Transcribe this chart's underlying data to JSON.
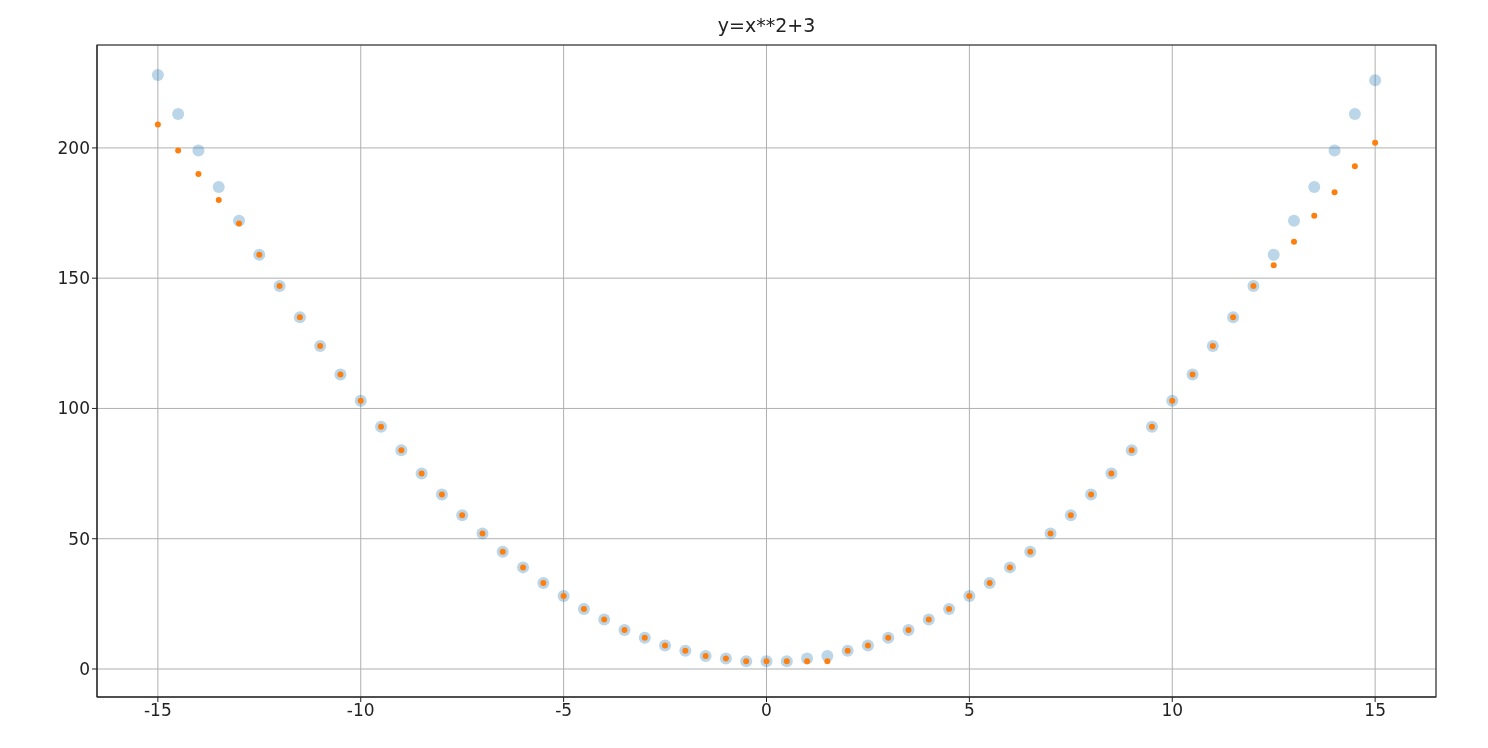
{
  "chart_data": {
    "type": "scatter",
    "title": "y=x**2+3",
    "series": [
      {
        "color": "#1f77b4",
        "x": [
          -15,
          -14.5,
          -14,
          -13.5,
          -13,
          -12.5,
          -12,
          -11.5,
          -11,
          -10.5,
          -10,
          -9.5,
          -9,
          -8.5,
          -8,
          -7.5,
          -7,
          -6.5,
          -6,
          -5.5,
          -5,
          -4.5,
          -4,
          -3.5,
          -3,
          -2.5,
          -2,
          -1.5,
          -1,
          -0.5,
          0,
          0.5,
          1,
          1.5,
          2,
          2.5,
          3,
          3.5,
          4,
          4.5,
          5,
          5.5,
          6,
          6.5,
          7,
          7.5,
          8,
          8.5,
          9,
          9.5,
          10,
          10.5,
          11,
          11.5,
          12,
          12.5,
          13,
          13.5,
          14,
          14.5,
          15
        ],
        "values": [
          228,
          213,
          199,
          185,
          172,
          159,
          147,
          135,
          124,
          113,
          103,
          93,
          84,
          75,
          67,
          59,
          52,
          45,
          39,
          33,
          28,
          23,
          19,
          15,
          12,
          9,
          7,
          5,
          4,
          3,
          3,
          3,
          4,
          5,
          7,
          9,
          12,
          15,
          19,
          23,
          28,
          33,
          39,
          45,
          52,
          59,
          67,
          75,
          84,
          93,
          103,
          113,
          124,
          135,
          147,
          159,
          172,
          185,
          199,
          213,
          226
        ]
      },
      {
        "color": "#ff7f0e",
        "x": [
          -15,
          -14.5,
          -14,
          -13.5,
          -13,
          -12.5,
          -12,
          -11.5,
          -11,
          -10.5,
          -10,
          -9.5,
          -9,
          -8.5,
          -8,
          -7.5,
          -7,
          -6.5,
          -6,
          -5.5,
          -5,
          -4.5,
          -4,
          -3.5,
          -3,
          -2.5,
          -2,
          -1.5,
          -1,
          -0.5,
          0,
          0.5,
          1,
          1.5,
          2,
          2.5,
          3,
          3.5,
          4,
          4.5,
          5,
          5.5,
          6,
          6.5,
          7,
          7.5,
          8,
          8.5,
          9,
          9.5,
          10,
          10.5,
          11,
          11.5,
          12,
          12.5,
          13,
          13.5,
          14,
          14.5,
          15
        ],
        "values": [
          209,
          199,
          190,
          180,
          171,
          159,
          147,
          135,
          124,
          113,
          103,
          93,
          84,
          75,
          67,
          59,
          52,
          45,
          39,
          33,
          28,
          23,
          19,
          15,
          12,
          9,
          7,
          5,
          4,
          3,
          3,
          3,
          3,
          3,
          7,
          9,
          12,
          15,
          19,
          23,
          28,
          33,
          39,
          45,
          52,
          59,
          67,
          75,
          84,
          93,
          103,
          113,
          124,
          135,
          147,
          155,
          164,
          174,
          183,
          193,
          202
        ]
      }
    ],
    "marker": "circle",
    "xlim": [
      -16.5,
      16.5
    ],
    "ylim": [
      -10.75,
      239.5
    ],
    "xticks": [
      -15,
      -10,
      -5,
      0,
      5,
      10,
      15
    ],
    "yticks": [
      0,
      50,
      100,
      150,
      200
    ],
    "grid": true,
    "legend": false
  }
}
